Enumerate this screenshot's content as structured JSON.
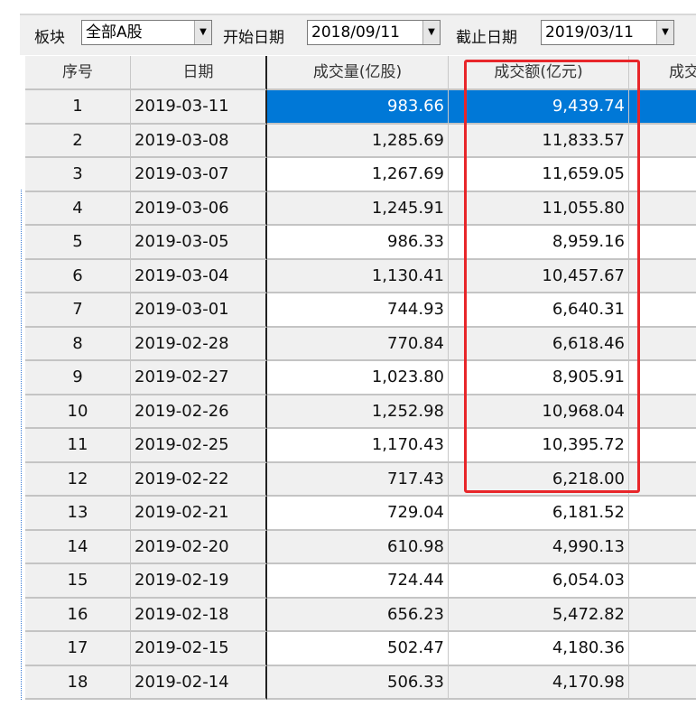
{
  "toolbar": {
    "sector_label": "板块",
    "sector_value": "全部A股",
    "start_label": "开始日期",
    "start_value": "2018/09/11",
    "end_label": "截止日期",
    "end_value": "2019/03/11"
  },
  "columns": [
    "序号",
    "日期",
    "成交量(亿股)",
    "成交额(亿元)",
    "成交"
  ],
  "highlight_color": "#e8262a",
  "selection_color": "#0078d7",
  "rows": [
    [
      "1",
      "2019-03-11",
      "983.66",
      "9,439.74"
    ],
    [
      "2",
      "2019-03-08",
      "1,285.69",
      "11,833.57"
    ],
    [
      "3",
      "2019-03-07",
      "1,267.69",
      "11,659.05"
    ],
    [
      "4",
      "2019-03-06",
      "1,245.91",
      "11,055.80"
    ],
    [
      "5",
      "2019-03-05",
      "986.33",
      "8,959.16"
    ],
    [
      "6",
      "2019-03-04",
      "1,130.41",
      "10,457.67"
    ],
    [
      "7",
      "2019-03-01",
      "744.93",
      "6,640.31"
    ],
    [
      "8",
      "2019-02-28",
      "770.84",
      "6,618.46"
    ],
    [
      "9",
      "2019-02-27",
      "1,023.80",
      "8,905.91"
    ],
    [
      "10",
      "2019-02-26",
      "1,252.98",
      "10,968.04"
    ],
    [
      "11",
      "2019-02-25",
      "1,170.43",
      "10,395.72"
    ],
    [
      "12",
      "2019-02-22",
      "717.43",
      "6,218.00"
    ],
    [
      "13",
      "2019-02-21",
      "729.04",
      "6,181.52"
    ],
    [
      "14",
      "2019-02-20",
      "610.98",
      "4,990.13"
    ],
    [
      "15",
      "2019-02-19",
      "724.44",
      "6,054.03"
    ],
    [
      "16",
      "2019-02-18",
      "656.23",
      "5,472.82"
    ],
    [
      "17",
      "2019-02-15",
      "502.47",
      "4,180.36"
    ],
    [
      "18",
      "2019-02-14",
      "506.33",
      "4,170.98"
    ]
  ]
}
